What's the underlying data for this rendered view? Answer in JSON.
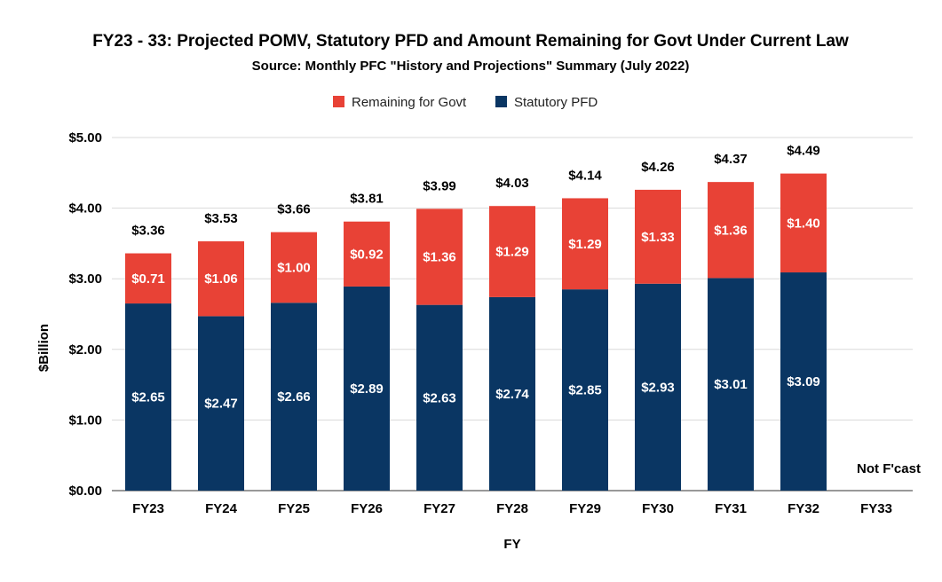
{
  "chart_data": {
    "type": "bar",
    "stacked": true,
    "title": "FY23 - 33: Projected POMV, Statutory PFD and Amount Remaining for Govt Under Current Law",
    "subtitle": "Source: Monthly PFC \"History and Projections\" Summary (July 2022)",
    "xlabel": "FY",
    "ylabel": "$Billion",
    "ylim": [
      0,
      5
    ],
    "yticks": [
      "$0.00",
      "$1.00",
      "$2.00",
      "$3.00",
      "$4.00",
      "$5.00"
    ],
    "grid": true,
    "legend_position": "top",
    "categories": [
      "FY23",
      "FY24",
      "FY25",
      "FY26",
      "FY27",
      "FY28",
      "FY29",
      "FY30",
      "FY31",
      "FY32",
      "FY33"
    ],
    "series": [
      {
        "name": "Statutory PFD",
        "color": "#0a3663",
        "values": [
          2.65,
          2.47,
          2.66,
          2.89,
          2.63,
          2.74,
          2.85,
          2.93,
          3.01,
          3.09,
          null
        ],
        "labels": [
          "$2.65",
          "$2.47",
          "$2.66",
          "$2.89",
          "$2.63",
          "$2.74",
          "$2.85",
          "$2.93",
          "$3.01",
          "$3.09",
          ""
        ]
      },
      {
        "name": "Remaining for Govt",
        "color": "#e84236",
        "values": [
          0.71,
          1.06,
          1.0,
          0.92,
          1.36,
          1.29,
          1.29,
          1.33,
          1.36,
          1.4,
          null
        ],
        "labels": [
          "$0.71",
          "$1.06",
          "$1.00",
          "$0.92",
          "$1.36",
          "$1.29",
          "$1.29",
          "$1.33",
          "$1.36",
          "$1.40",
          ""
        ]
      }
    ],
    "totals": [
      3.36,
      3.53,
      3.66,
      3.81,
      3.99,
      4.03,
      4.14,
      4.26,
      4.37,
      4.49,
      null
    ],
    "total_labels": [
      "$3.36",
      "$3.53",
      "$3.66",
      "$3.81",
      "$3.99",
      "$4.03",
      "$4.14",
      "$4.26",
      "$4.37",
      "$4.49",
      ""
    ],
    "legend": [
      {
        "name": "Remaining for Govt",
        "color": "#e84236"
      },
      {
        "name": "Statutory PFD",
        "color": "#0a3663"
      }
    ],
    "annotations": [
      {
        "category": "FY33",
        "text": "Not F'cast"
      }
    ]
  }
}
